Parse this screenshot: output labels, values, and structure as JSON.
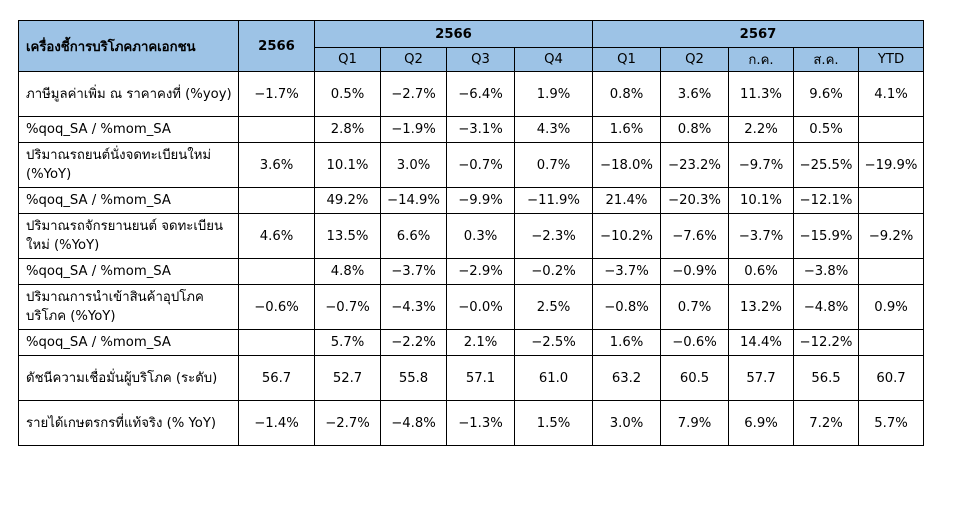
{
  "table": {
    "header": {
      "title": "เครื่องชี้การบริโภคภาคเอกชน",
      "col_2566": "2566",
      "group_2566": "2566",
      "group_2567": "2567",
      "sub_2566": [
        "Q1",
        "Q2",
        "Q3",
        "Q4"
      ],
      "sub_2567": [
        "Q1",
        "Q2",
        "ก.ค.",
        "ส.ค.",
        "YTD"
      ]
    },
    "rows": [
      {
        "label": "ภาษีมูลค่าเพิ่ม ณ ราคาคงที่ (%yoy)",
        "values": [
          "−1.7%",
          "0.5%",
          "−2.7%",
          "−6.4%",
          "1.9%",
          "0.8%",
          "3.6%",
          "11.3%",
          "9.6%",
          "4.1%"
        ]
      },
      {
        "label": "%qoq_SA / %mom_SA",
        "values": [
          "",
          "2.8%",
          "−1.9%",
          "−3.1%",
          "4.3%",
          "1.6%",
          "0.8%",
          "2.2%",
          "0.5%",
          ""
        ]
      },
      {
        "label": "ปริมาณรถยนต์นั่งจดทะเบียนใหม่ (%YoY)",
        "values": [
          "3.6%",
          "10.1%",
          "3.0%",
          "−0.7%",
          "0.7%",
          "−18.0%",
          "−23.2%",
          "−9.7%",
          "−25.5%",
          "−19.9%"
        ]
      },
      {
        "label": "%qoq_SA / %mom_SA",
        "values": [
          "",
          "49.2%",
          "−14.9%",
          "−9.9%",
          "−11.9%",
          "21.4%",
          "−20.3%",
          "10.1%",
          "−12.1%",
          ""
        ]
      },
      {
        "label": "ปริมาณรถจักรยานยนต์ จดทะเบียนใหม่ (%YoY)",
        "values": [
          "4.6%",
          "13.5%",
          "6.6%",
          "0.3%",
          "−2.3%",
          "−10.2%",
          "−7.6%",
          "−3.7%",
          "−15.9%",
          "−9.2%"
        ]
      },
      {
        "label": "%qoq_SA / %mom_SA",
        "values": [
          "",
          "4.8%",
          "−3.7%",
          "−2.9%",
          "−0.2%",
          "−3.7%",
          "−0.9%",
          "0.6%",
          "−3.8%",
          ""
        ]
      },
      {
        "label": "ปริมาณการนำเข้าสินค้าอุปโภค บริโภค (%YoY)",
        "values": [
          "−0.6%",
          "−0.7%",
          "−4.3%",
          "−0.0%",
          "2.5%",
          "−0.8%",
          "0.7%",
          "13.2%",
          "−4.8%",
          "0.9%"
        ]
      },
      {
        "label": "%qoq_SA / %mom_SA",
        "values": [
          "",
          "5.7%",
          "−2.2%",
          "2.1%",
          "−2.5%",
          "1.6%",
          "−0.6%",
          "14.4%",
          "−12.2%",
          ""
        ]
      },
      {
        "label": "ดัชนีความเชื่อมั่นผู้บริโภค (ระดับ)",
        "values": [
          "56.7",
          "52.7",
          "55.8",
          "57.1",
          "61.0",
          "63.2",
          "60.5",
          "57.7",
          "56.5",
          "60.7"
        ]
      },
      {
        "label": "รายได้เกษตรกรที่แท้จริง (% YoY)",
        "values": [
          "−1.4%",
          "−2.7%",
          "−4.8%",
          "−1.3%",
          "1.5%",
          "3.0%",
          "7.9%",
          "6.9%",
          "7.2%",
          "5.7%"
        ]
      }
    ],
    "row_heights": [
      "tall",
      "short",
      "tall",
      "short",
      "tall",
      "short",
      "tall",
      "short",
      "tall",
      "tall"
    ]
  }
}
